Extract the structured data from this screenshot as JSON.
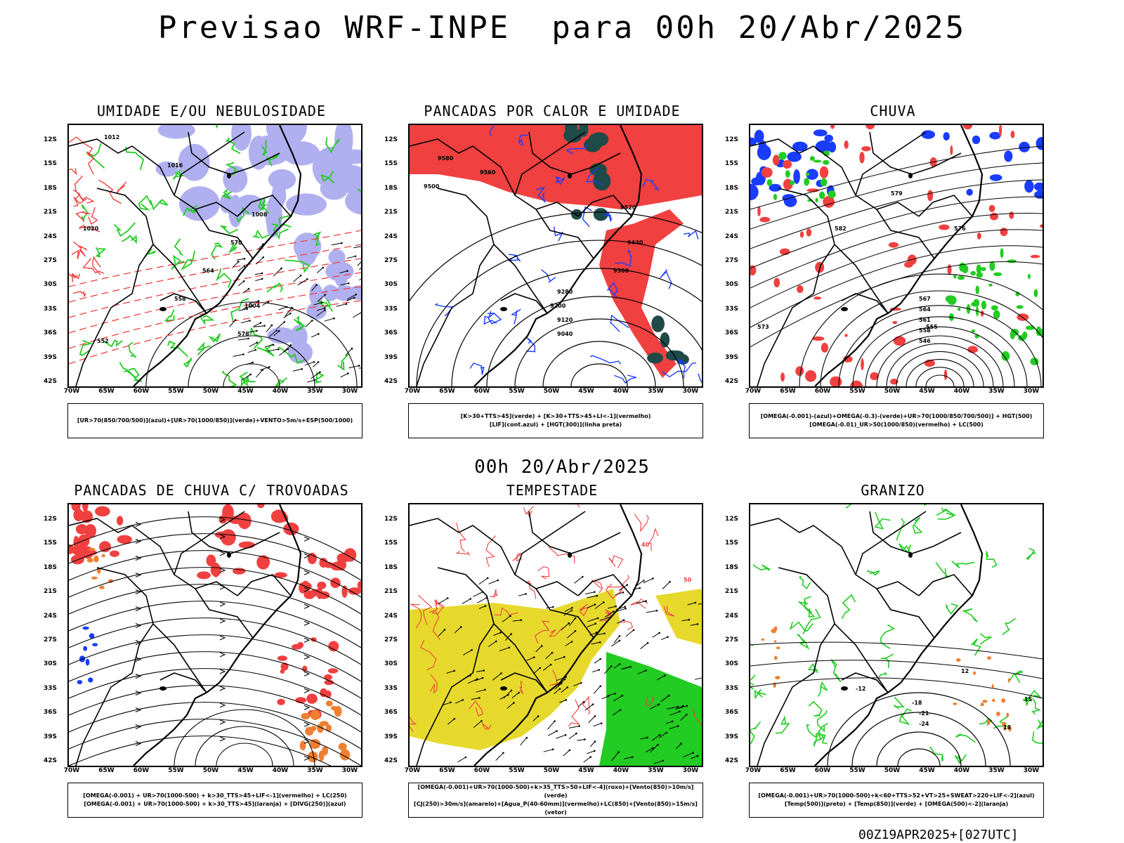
{
  "header": {
    "title": "Previsao WRF-INPE  para 00h 20/Abr/2025",
    "mid_date": "00h 20/Abr/2025",
    "footer_stamp": "00Z19APR2025+[027UTC]"
  },
  "axes": {
    "latitudes": [
      "12S",
      "15S",
      "18S",
      "21S",
      "24S",
      "27S",
      "30S",
      "33S",
      "36S",
      "39S",
      "42S"
    ],
    "longitudes": [
      "70W",
      "65W",
      "60W",
      "55W",
      "50W",
      "45W",
      "40W",
      "35W",
      "30W"
    ]
  },
  "colors": {
    "red": "#f04040",
    "blue": "#1a3cff",
    "green": "#22cc22",
    "lavender": "#b0b0f0",
    "dark_teal": "#1e4a48",
    "yellow": "#e6d92c",
    "orange": "#ee8030",
    "black": "#000000"
  },
  "panels": [
    {
      "title": "UMIDADE E/OU NEBULOSIDADE",
      "legend": [
        "[UR>70(850/700/500)](azul)+[UR>70(1000/850)](verde)+VENTO>5m/s+ESP(500/1000)"
      ],
      "contour_labels": [
        "1012",
        "1016",
        "1020",
        "1008",
        "1004",
        "576",
        "570",
        "564",
        "558",
        "552"
      ]
    },
    {
      "title": "PANCADAS POR CALOR E UMIDADE",
      "legend": [
        "[K>30+TTS>45](verde) + [K>30+TTS>45+LI<-1](vermelho)",
        "[LIF](cont.azul) + [HGT(300)](linha preta)"
      ],
      "contour_labels": [
        "9580",
        "9560",
        "9500",
        "9520",
        "9440",
        "9360",
        "9280",
        "9200",
        "9120",
        "9040"
      ]
    },
    {
      "title": "CHUVA",
      "legend": [
        "[OMEGA(-0.001)-(azul)+OMEGA(-0.3)-(verde)+UR>70(1000/850/700/500)] + HGT(500)",
        "[OMEGA(-0.01)_UR>50(1000/850)(vermelho) + LC(500)"
      ],
      "contour_labels": [
        "582",
        "579",
        "576",
        "573",
        "567",
        "564",
        "561",
        "558",
        "555",
        "546"
      ]
    },
    {
      "title": "PANCADAS DE CHUVA C/ TROVOADAS",
      "legend": [
        "[OMEGA(-0.001) + UR>70(1000-500) + k>30_TTS>45+LIF<-1](vermelho) + LC(250)",
        "[OMEGA(-0.001) + UR>70(1000-500) + k>30_TTS>45](laranja) + [DIVG(250)](azul)"
      ],
      "contour_labels": []
    },
    {
      "title": "TEMPESTADE",
      "legend": [
        "[OMEGA(-0.001)+UR>70(1000-500)+k>35_TTS>50+LIF<-4](roxo)+[Vento(850)>10m/s](verde)",
        "[CJ(250)>30m/s](amarelo)+[Agua_P(40-60mm)](vermelho)+LC(850)+[Vento(850)>15m/s](vetor)"
      ],
      "contour_labels": [
        "40",
        "50"
      ]
    },
    {
      "title": "GRANIZO",
      "legend": [
        "[OMEGA(-0.001)+UR>70(1000-500)+k<60+TTS>52+VT>25+SWEAT>220+LIF<-2](azul)",
        "[Temp(500)](preto) + [Temp(850)](verde) + [OMEGA(500)<-2](laranja)"
      ],
      "contour_labels": [
        "-12",
        "-18",
        "-21",
        "-24",
        "12",
        "15",
        "18"
      ]
    }
  ]
}
